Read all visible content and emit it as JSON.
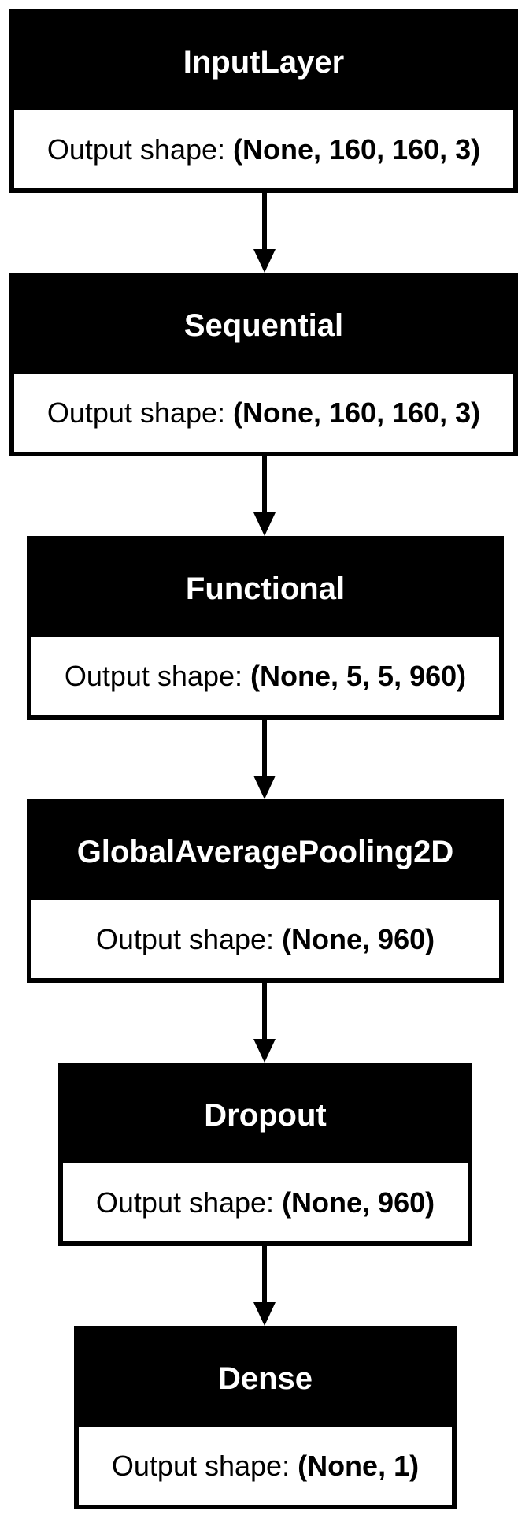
{
  "diagram": {
    "type": "layer-stack",
    "nodes": [
      {
        "name": "InputLayer",
        "label": "Output shape:",
        "shape": "(None, 160, 160, 3)"
      },
      {
        "name": "Sequential",
        "label": "Output shape:",
        "shape": "(None, 160, 160, 3)"
      },
      {
        "name": "Functional",
        "label": "Output shape:",
        "shape": "(None, 5, 5, 960)"
      },
      {
        "name": "GlobalAveragePooling2D",
        "label": "Output shape:",
        "shape": "(None, 960)"
      },
      {
        "name": "Dropout",
        "label": "Output shape:",
        "shape": "(None, 960)"
      },
      {
        "name": "Dense",
        "label": "Output shape:",
        "shape": "(None, 1)"
      }
    ],
    "edges": [
      {
        "from": "InputLayer",
        "to": "Sequential"
      },
      {
        "from": "Sequential",
        "to": "Functional"
      },
      {
        "from": "Functional",
        "to": "GlobalAveragePooling2D"
      },
      {
        "from": "GlobalAveragePooling2D",
        "to": "Dropout"
      },
      {
        "from": "Dropout",
        "to": "Dense"
      }
    ]
  }
}
